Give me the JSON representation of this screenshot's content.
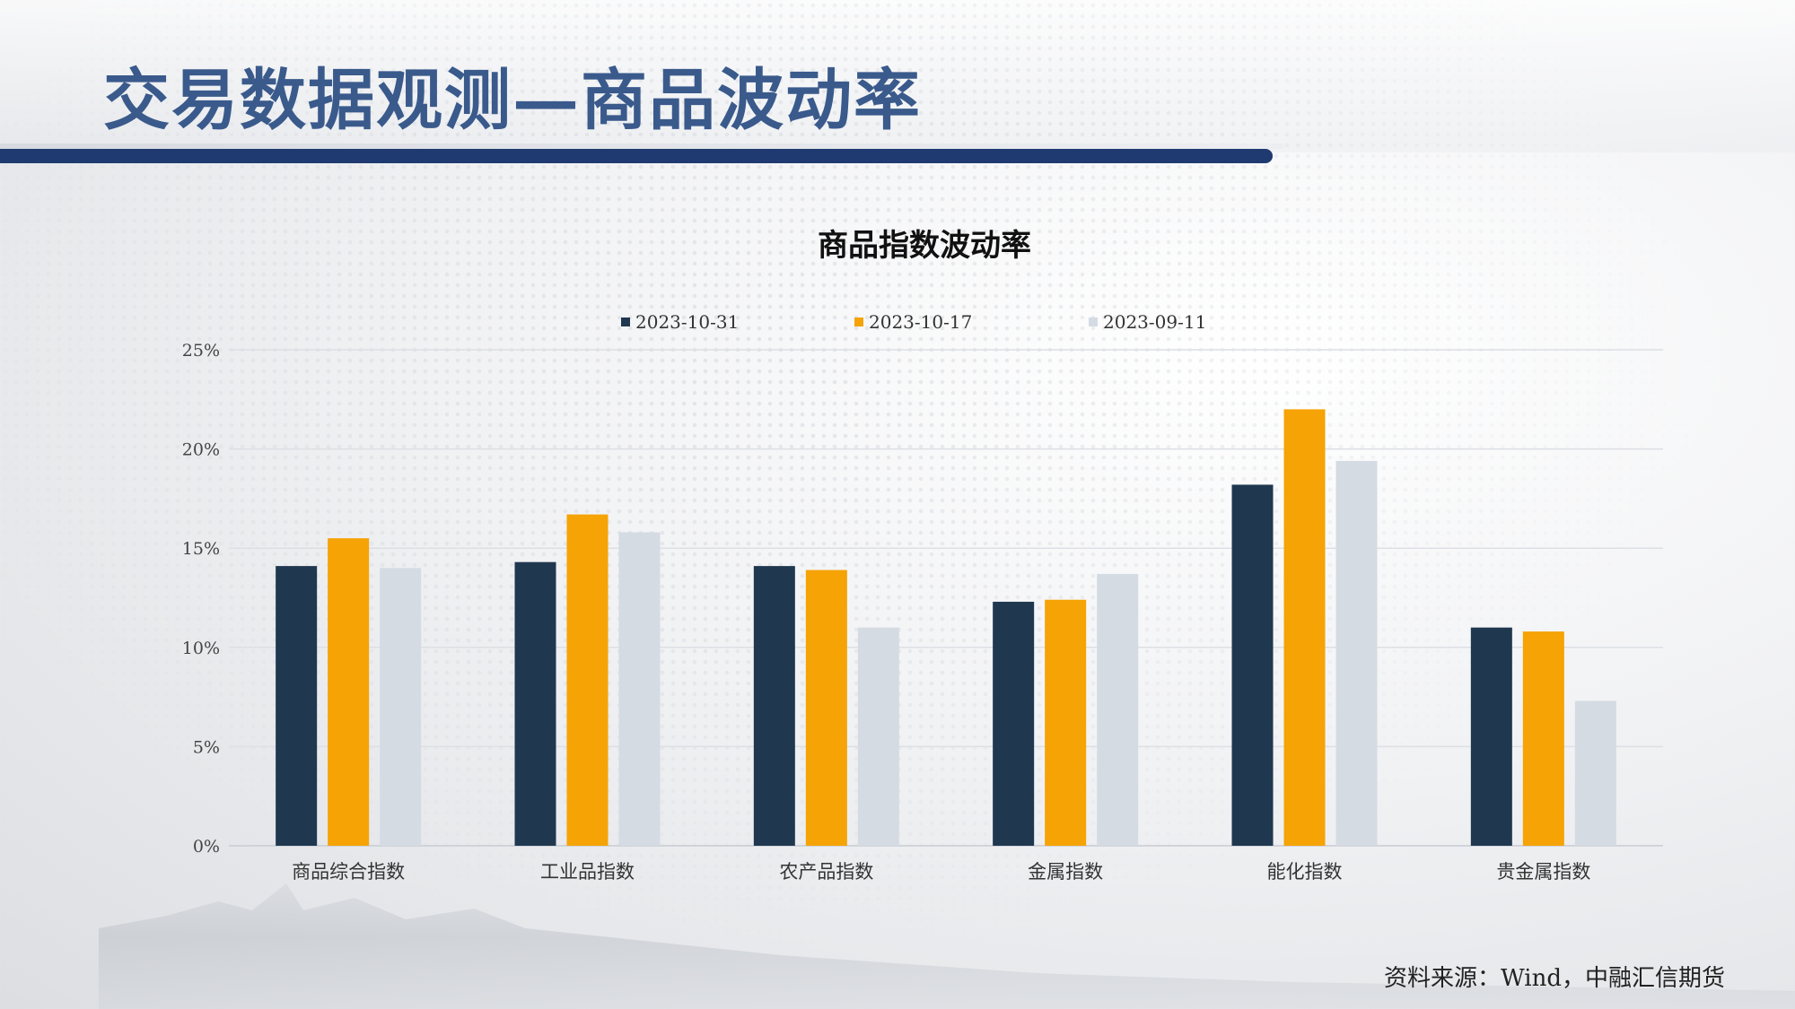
{
  "page": {
    "title": "交易数据观测—商品波动率",
    "source": "资料来源：Wind，中融汇信期货"
  },
  "colors": {
    "series": [
      "#1f3850",
      "#f5a305",
      "#d5dbe3"
    ],
    "title": "#3a5a8c",
    "rule": "#1f3a70"
  },
  "chart_data": {
    "type": "bar",
    "title": "商品指数波动率",
    "categories": [
      "商品综合指数",
      "工业品指数",
      "农产品指数",
      "金属指数",
      "能化指数",
      "贵金属指数"
    ],
    "series": [
      {
        "name": "2023-10-31",
        "values": [
          14.1,
          14.3,
          14.1,
          12.3,
          18.2,
          11.0
        ]
      },
      {
        "name": "2023-10-17",
        "values": [
          15.5,
          16.7,
          13.9,
          12.4,
          22.0,
          10.8
        ]
      },
      {
        "name": "2023-09-11",
        "values": [
          14.0,
          15.8,
          11.0,
          13.7,
          19.4,
          7.3
        ]
      }
    ],
    "ylim": [
      0,
      25
    ],
    "yticks": [
      0,
      5,
      10,
      15,
      20,
      25
    ],
    "ytick_labels": [
      "0%",
      "5%",
      "10%",
      "15%",
      "20%",
      "25%"
    ],
    "grid": true,
    "legend_position": "top"
  }
}
